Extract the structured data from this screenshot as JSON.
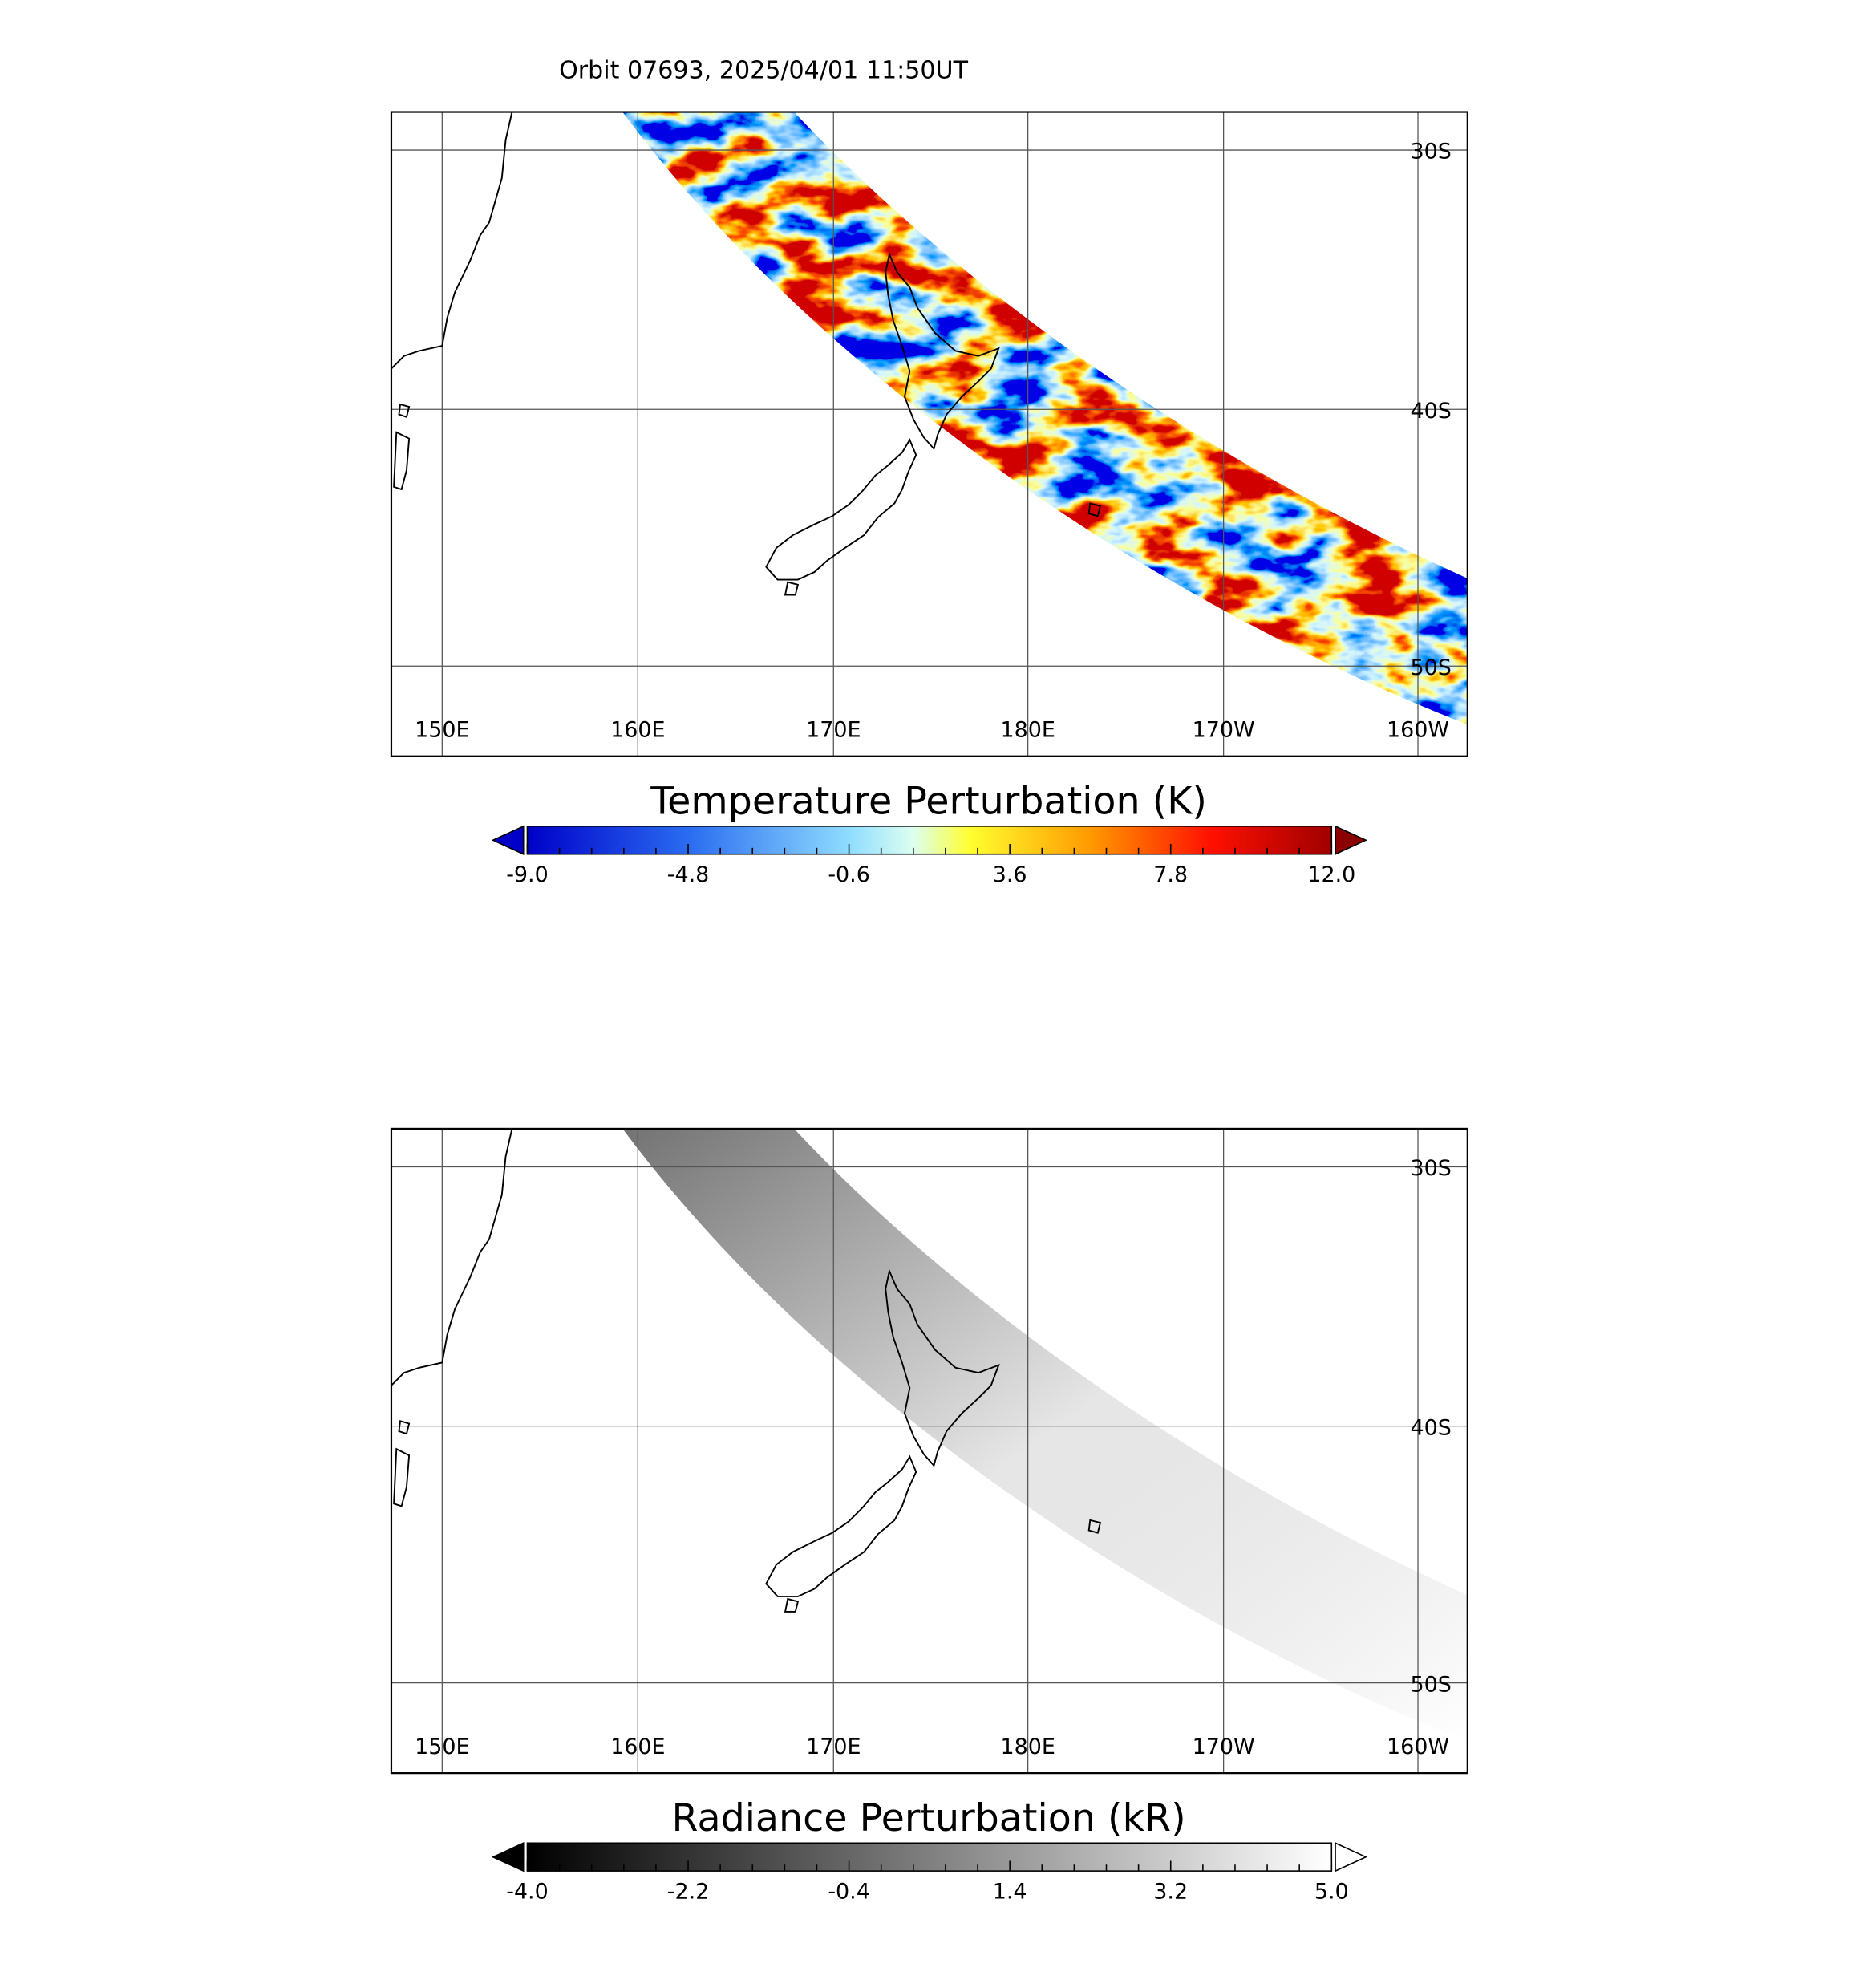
{
  "header": {
    "title": "Orbit 07693, 2025/04/01 11:50UT"
  },
  "panels": [
    {
      "lon_labels": [
        "150E",
        "160E",
        "170E",
        "180E",
        "170W",
        "160W"
      ],
      "lat_labels": [
        "30S",
        "40S",
        "50S"
      ],
      "colorbar": {
        "title": "Temperature Perturbation (K)",
        "ticks": [
          "-9.0",
          "-4.8",
          "-0.6",
          "3.6",
          "7.8",
          "12.0"
        ]
      }
    },
    {
      "lon_labels": [
        "150E",
        "160E",
        "170E",
        "180E",
        "170W",
        "160W"
      ],
      "lat_labels": [
        "30S",
        "40S",
        "50S"
      ],
      "colorbar": {
        "title": "Radiance Perturbation (kR)",
        "ticks": [
          "-4.0",
          "-2.2",
          "-0.4",
          "1.4",
          "3.2",
          "5.0"
        ]
      }
    }
  ]
}
